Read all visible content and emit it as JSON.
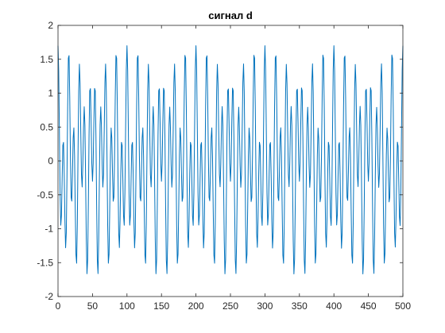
{
  "chart_data": {
    "type": "line",
    "title": "сигнал d",
    "xlabel": "",
    "ylabel": "",
    "xlim": [
      0,
      500
    ],
    "ylim": [
      -2,
      2
    ],
    "xticks": [
      0,
      50,
      100,
      150,
      200,
      250,
      300,
      350,
      400,
      450,
      500
    ],
    "yticks": [
      -2,
      -1.5,
      -1,
      -0.5,
      0,
      0.5,
      1,
      1.5,
      2
    ],
    "grid": false,
    "series": [
      {
        "name": "",
        "color": "#0072bd",
        "x_start": 0,
        "x_step": 1,
        "count": 501,
        "components": [
          {
            "amplitude": 1.0,
            "period": 7.692
          },
          {
            "amplitude": 0.7,
            "period": 16.667
          }
        ]
      }
    ]
  },
  "colors": {
    "line": "#0072bd",
    "axis": "#262626",
    "background": "#ffffff"
  }
}
